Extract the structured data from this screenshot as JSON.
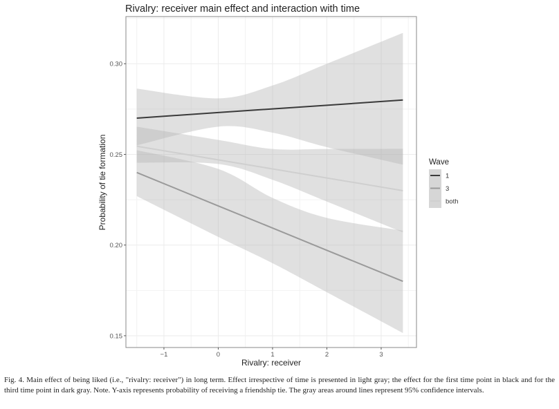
{
  "chart_data": {
    "type": "line",
    "title": "Rivalry: receiver main effect and interaction with time",
    "xlabel": "Rivalry: receiver",
    "ylabel": "Probability of tie formation",
    "xlim": [
      -1.7,
      3.65
    ],
    "ylim": [
      0.1435,
      0.326
    ],
    "xticks": [
      -1,
      0,
      1,
      2,
      3
    ],
    "xtick_labels": [
      "−1",
      "0",
      "1",
      "2",
      "3"
    ],
    "yticks": [
      0.15,
      0.2,
      0.25,
      0.3
    ],
    "ytick_labels": [
      "0.15",
      "0.20",
      "0.25",
      "0.30"
    ],
    "grid": true,
    "legend": {
      "title": "Wave",
      "placement": "right",
      "entries": [
        "1",
        "3",
        "both"
      ]
    },
    "x": [
      -1.5,
      0,
      1,
      2,
      3.4
    ],
    "series": [
      {
        "name": "1",
        "color": "#3a3a3a",
        "values": [
          0.27,
          0.2731,
          0.2751,
          0.2771,
          0.28
        ],
        "ci_lower": [
          0.255,
          0.2653,
          0.262,
          0.254,
          0.2443
        ],
        "ci_upper": [
          0.2863,
          0.2809,
          0.288,
          0.3,
          0.317
        ]
      },
      {
        "name": "3",
        "color": "#9a9a9a",
        "values": [
          0.24,
          0.2216,
          0.2094,
          0.1971,
          0.18
        ],
        "ci_lower": [
          0.227,
          0.2045,
          0.19,
          0.174,
          0.1515
        ],
        "ci_upper": [
          0.2523,
          0.242,
          0.226,
          0.215,
          0.208
        ]
      },
      {
        "name": "both",
        "color": "#cfcfcf",
        "values": [
          0.2545,
          0.247,
          0.242,
          0.237,
          0.23
        ],
        "ci_lower": [
          0.2454,
          0.2447,
          0.236,
          0.224,
          0.207
        ],
        "ci_upper": [
          0.2653,
          0.258,
          0.253,
          0.253,
          0.2531
        ]
      }
    ]
  },
  "caption": "Fig. 4.  Main effect of being liked (i.e., \"rivalry: receiver\") in long term. Effect irrespective of time is presented in light gray; the effect for the first time point in black and for the third time point in dark gray. Note. Y-axis represents probability of receiving a friendship tie. The gray areas around lines represent 95% confidence intervals."
}
